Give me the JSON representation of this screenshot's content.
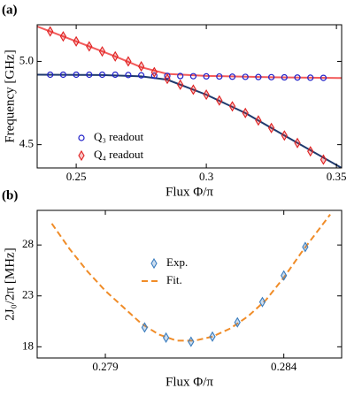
{
  "chart_data": [
    {
      "type": "scatter",
      "panel_label": "(a)",
      "x_label": "Flux Φ/π",
      "y_label": "Frequency [GHz]",
      "xlim": [
        0.235,
        0.352
      ],
      "ylim": [
        4.36,
        5.22
      ],
      "xticks": [
        0.25,
        0.3,
        0.35
      ],
      "yticks": [
        {
          "value": 4.5,
          "label": "4.5"
        },
        {
          "value": 5,
          "label": "5.0"
        }
      ],
      "legend": "lower left",
      "series": [
        {
          "style": "line",
          "color": "#1f3a6e",
          "x": [
            0.235,
            0.26,
            0.275,
            0.285,
            0.3,
            0.315,
            0.33,
            0.352
          ],
          "values": [
            4.92,
            4.918,
            4.91,
            4.89,
            4.8,
            4.69,
            4.555,
            4.36
          ]
        },
        {
          "style": "line",
          "color": "#f25a5a",
          "x": [
            0.235,
            0.25,
            0.265,
            0.275,
            0.285,
            0.3,
            0.325,
            0.352
          ],
          "values": [
            5.21,
            5.12,
            5.03,
            4.965,
            4.925,
            4.913,
            4.905,
            4.9
          ]
        },
        {
          "name": "Q₃ readout",
          "style": "marker",
          "marker": "circle",
          "color": "#1f1fc8",
          "x": [
            0.24,
            0.245,
            0.25,
            0.255,
            0.26,
            0.265,
            0.27,
            0.275,
            0.28,
            0.285,
            0.29,
            0.295,
            0.3,
            0.305,
            0.31,
            0.315,
            0.32,
            0.325,
            0.33,
            0.335,
            0.34,
            0.345
          ],
          "values": [
            4.92,
            4.92,
            4.92,
            4.92,
            4.92,
            4.92,
            4.918,
            4.916,
            4.914,
            4.913,
            4.912,
            4.911,
            4.91,
            4.909,
            4.908,
            4.907,
            4.906,
            4.905,
            4.904,
            4.903,
            4.902,
            4.901
          ]
        },
        {
          "name": "Q₄ readout",
          "style": "marker",
          "marker": "diamond",
          "color": "#e02020",
          "x": [
            0.24,
            0.245,
            0.25,
            0.255,
            0.26,
            0.265,
            0.27,
            0.275,
            0.28,
            0.285,
            0.29,
            0.295,
            0.3,
            0.305,
            0.31,
            0.315,
            0.32,
            0.325,
            0.33,
            0.335,
            0.34,
            0.345
          ],
          "values": [
            5.18,
            5.15,
            5.12,
            5.09,
            5.06,
            5.03,
            5.0,
            4.97,
            4.935,
            4.895,
            4.86,
            4.83,
            4.8,
            4.765,
            4.73,
            4.69,
            4.645,
            4.6,
            4.555,
            4.51,
            4.46,
            4.41
          ]
        }
      ]
    },
    {
      "type": "scatter",
      "panel_label": "(b)",
      "x_label": "Flux Φ/π",
      "y_label": "2J₀/2π [MHz]",
      "xlim": [
        0.27709,
        0.28562
      ],
      "ylim": [
        16.9,
        31.4
      ],
      "xticks": [
        0.279,
        0.284
      ],
      "yticks": [
        18,
        23,
        28
      ],
      "legend": "upper center",
      "series": [
        {
          "name": "Exp.",
          "style": "marker",
          "marker": "diamond",
          "color": "#3a7dbf",
          "x": [
            0.2801,
            0.2807,
            0.2814,
            0.282,
            0.2827,
            0.2834,
            0.284,
            0.2846
          ],
          "values": [
            19.9,
            18.9,
            18.5,
            19.0,
            20.4,
            22.4,
            25.0,
            27.8
          ]
        },
        {
          "name": "Fit.",
          "style": "dashed",
          "color": "#f08c28",
          "x": [
            0.2775,
            0.278,
            0.2785,
            0.279,
            0.2795,
            0.28,
            0.2805,
            0.281,
            0.2815,
            0.282,
            0.2825,
            0.283,
            0.2835,
            0.284,
            0.2845,
            0.2853
          ],
          "values": [
            30.1,
            27.6,
            25.4,
            23.5,
            21.9,
            20.3,
            19.2,
            18.6,
            18.6,
            19.0,
            19.8,
            21.0,
            22.6,
            24.8,
            27.3,
            31.0
          ]
        }
      ]
    }
  ]
}
